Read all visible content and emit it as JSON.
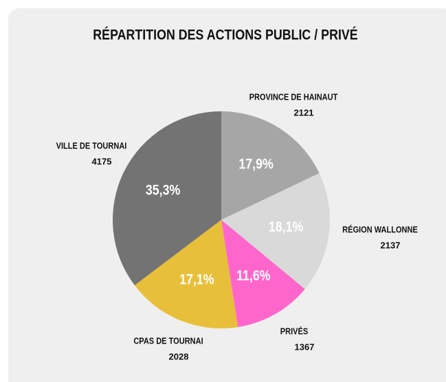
{
  "chart_data": {
    "type": "pie",
    "title": "RÉPARTITION DES ACTIONS PUBLIC / PRIVÉ",
    "categories": [
      "PROVINCE DE HAINAUT",
      "RÉGION WALLONNE",
      "PRIVÉS",
      "CPAS DE TOURNAI",
      "VILLE DE TOURNAI"
    ],
    "values": [
      2121,
      2137,
      1367,
      2028,
      4175
    ],
    "percentages": [
      17.9,
      18.1,
      11.6,
      17.1,
      35.3
    ],
    "percentage_labels": [
      "17,9%",
      "18,1%",
      "11,6%",
      "17,1%",
      "35,3%"
    ],
    "colors": [
      "#a6a6a6",
      "#d9d9d9",
      "#ff66cc",
      "#e8bf3a",
      "#737373"
    ]
  }
}
